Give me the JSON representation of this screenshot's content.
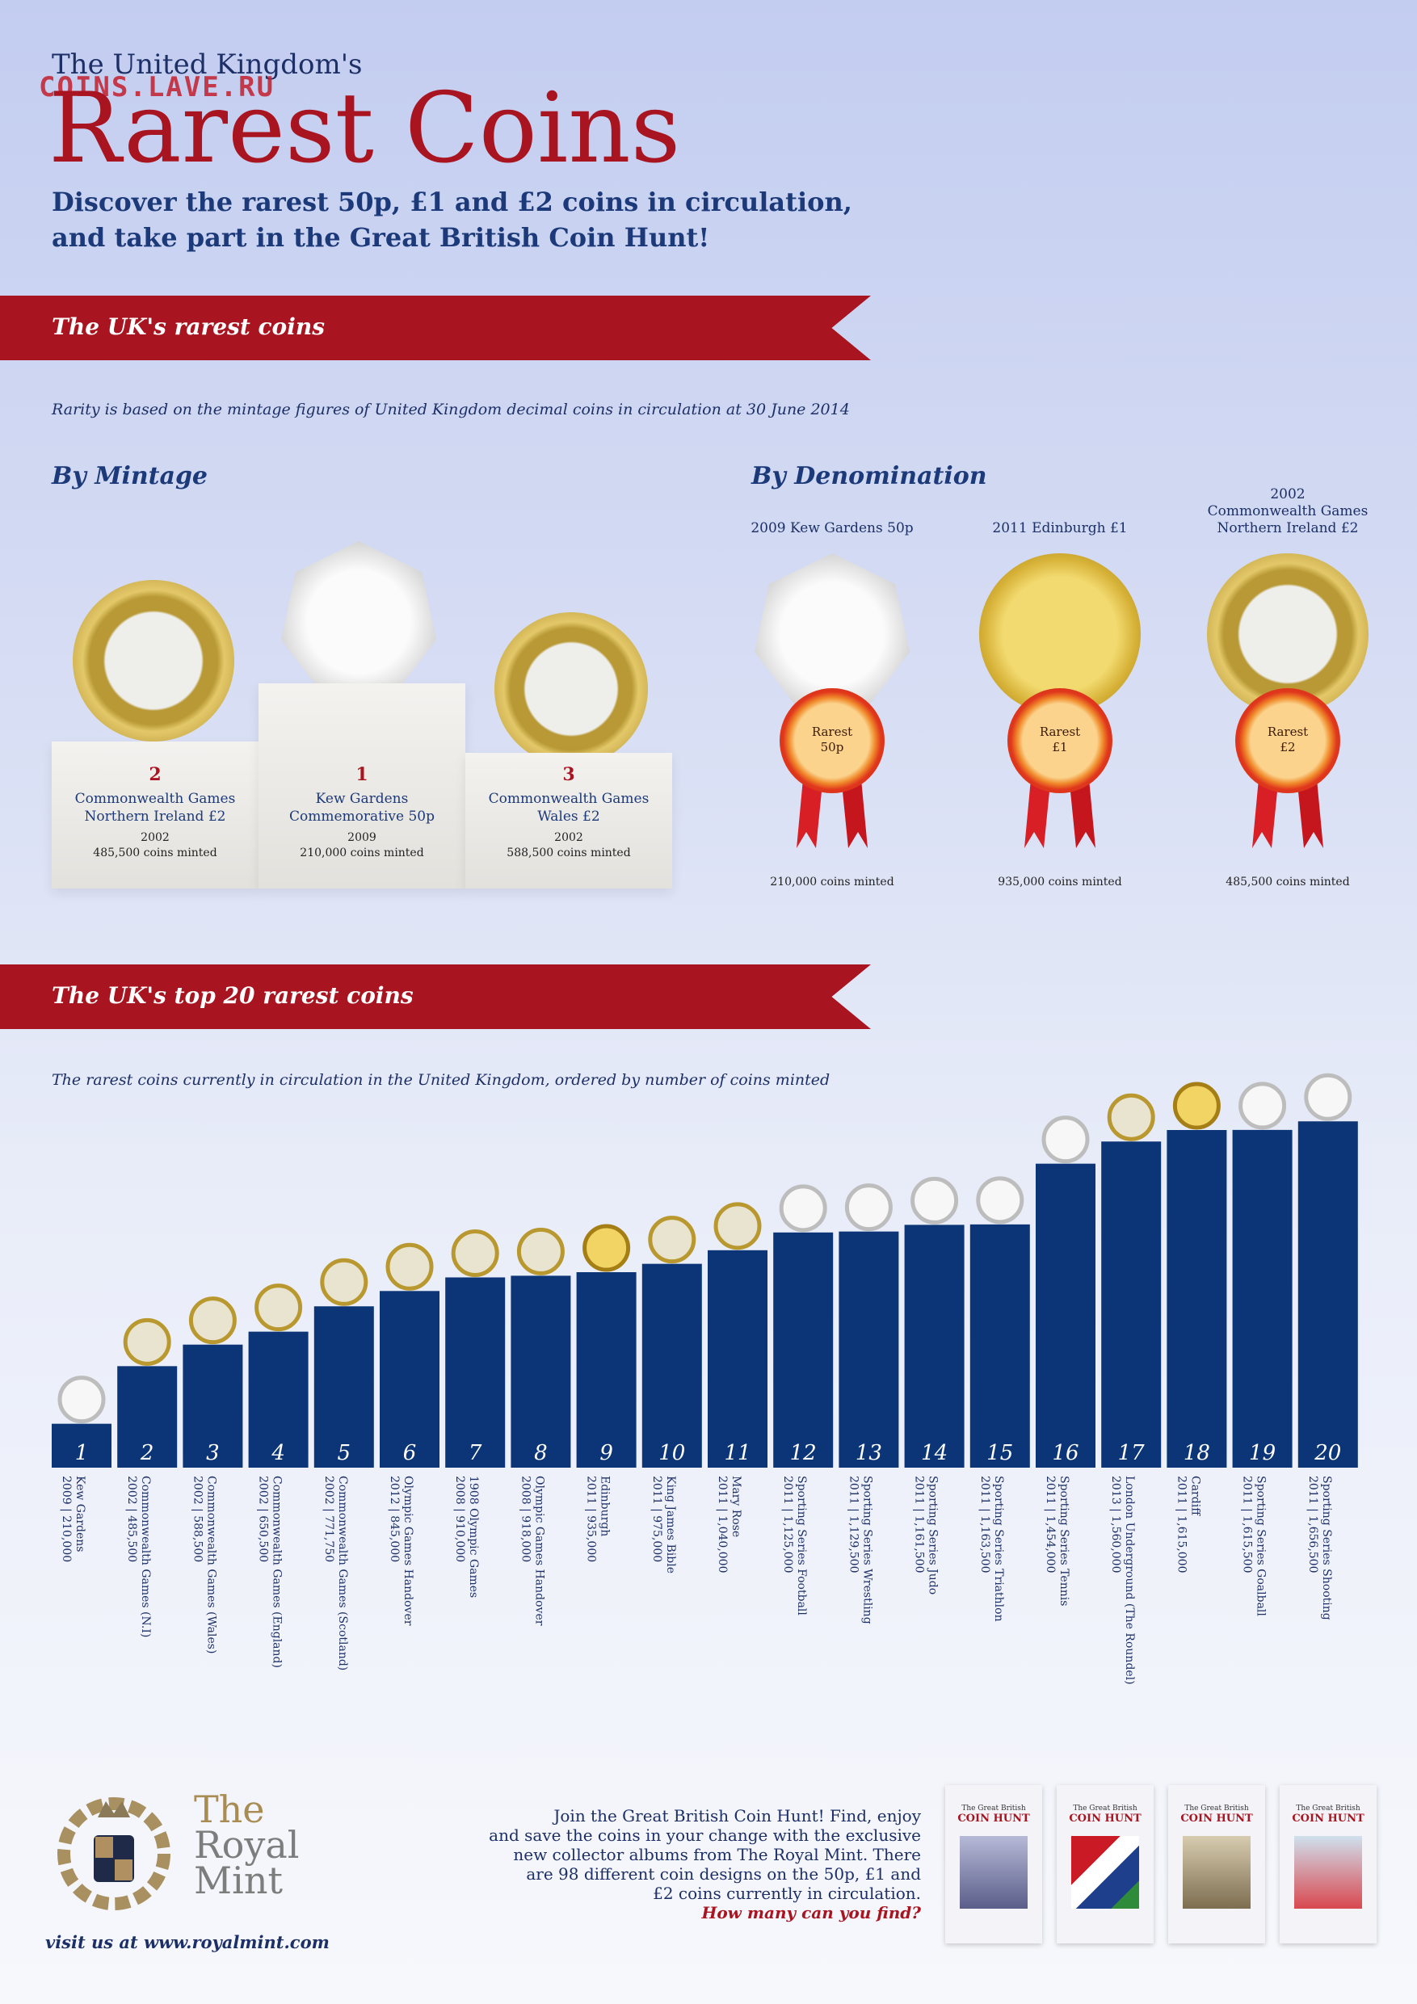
{
  "watermark": "COINS.LAVE.RU",
  "header": {
    "kicker": "The United Kingdom's",
    "title": "Rarest Coins",
    "subtitle_line1": "Discover the rarest 50p, £1 and £2 coins in circulation,",
    "subtitle_line2": "and take part in the Great British Coin Hunt!"
  },
  "ribbon1": {
    "label": "The UK's rarest coins"
  },
  "rarity_note": "Rarity is based on the mintage figures of United Kingdom decimal coins in circulation at 30 June 2014",
  "by_mintage": {
    "heading": "By Mintage",
    "podium": [
      {
        "rank": "2",
        "name_line1": "Commonwealth Games",
        "name_line2": "Northern Ireland £2",
        "year": "2002",
        "minted": "485,500 coins minted"
      },
      {
        "rank": "1",
        "name_line1": "Kew Gardens",
        "name_line2": "Commemorative 50p",
        "year": "2009",
        "minted": "210,000 coins minted"
      },
      {
        "rank": "3",
        "name_line1": "Commonwealth Games",
        "name_line2": "Wales £2",
        "year": "2002",
        "minted": "588,500 coins minted"
      }
    ]
  },
  "by_denomination": {
    "heading": "By Denomination",
    "items": [
      {
        "name_line1": "",
        "name_line2": "2009 Kew Gardens 50p",
        "badge_line1": "Rarest",
        "badge_line2": "50p",
        "minted": "210,000 coins minted"
      },
      {
        "name_line1": "",
        "name_line2": "2011 Edinburgh £1",
        "badge_line1": "Rarest",
        "badge_line2": "£1",
        "minted": "935,000 coins minted"
      },
      {
        "name_line1": "2002",
        "name_line2": "Commonwealth Games",
        "name_line3": "Northern Ireland £2",
        "badge_line1": "Rarest",
        "badge_line2": "£2",
        "minted": "485,500 coins minted"
      }
    ]
  },
  "ribbon2": {
    "label": "The UK's top 20 rarest coins"
  },
  "chart_note": "The rarest coins currently in circulation in the United Kingdom, ordered by number of coins minted",
  "chart_data": {
    "type": "bar",
    "bar_color": "#0b3576",
    "categories": [
      "Kew Gardens",
      "Commonwealth Games (N.I)",
      "Commonwealth Games (Wales)",
      "Commonwealth Games (England)",
      "Commonwealth Games (Scotland)",
      "Olympic Games Handover",
      "1908 Olympic Games",
      "Olympic Games Handover",
      "Edinburgh",
      "King James Bible",
      "Mary Rose",
      "Sporting Series Football",
      "Sporting Series Wrestling",
      "Sporting Series Judo",
      "Sporting Series Triathlon",
      "Sporting Series Tennis",
      "London Underground (The Roundel)",
      "Cardiff",
      "Sporting Series Goalball",
      "Sporting Series Shooting"
    ],
    "ranks": [
      "1",
      "2",
      "3",
      "4",
      "5",
      "6",
      "7",
      "8",
      "9",
      "10",
      "11",
      "12",
      "13",
      "14",
      "15",
      "16",
      "17",
      "18",
      "19",
      "20"
    ],
    "years": [
      "2009",
      "2002",
      "2002",
      "2002",
      "2002",
      "2012",
      "2008",
      "2008",
      "2011",
      "2011",
      "2011",
      "2011",
      "2011",
      "2011",
      "2011",
      "2011",
      "2013",
      "2011",
      "2011",
      "2011"
    ],
    "mintage_labels": [
      "210,000",
      "485,500",
      "588,500",
      "650,500",
      "771,750",
      "845,000",
      "910,000",
      "918,000",
      "935,000",
      "975,000",
      "1,040,000",
      "1,125,000",
      "1,129,500",
      "1,161,500",
      "1,163,500",
      "1,454,000",
      "1,560,000",
      "1,615,000",
      "1,615,500",
      "1,656,500"
    ],
    "values": [
      210000,
      485500,
      588500,
      650500,
      771750,
      845000,
      910000,
      918000,
      935000,
      975000,
      1040000,
      1125000,
      1129500,
      1161500,
      1163500,
      1454000,
      1560000,
      1615000,
      1615500,
      1656500
    ],
    "coin_types": [
      "silver",
      "bimetal",
      "bimetal",
      "bimetal",
      "bimetal",
      "bimetal",
      "bimetal",
      "bimetal",
      "gold",
      "bimetal",
      "bimetal",
      "silver",
      "silver",
      "silver",
      "silver",
      "silver",
      "bimetal",
      "gold",
      "silver",
      "silver"
    ],
    "ylim": [
      0,
      1700000
    ]
  },
  "footer": {
    "brand_line1": "The",
    "brand_line2": "Royal",
    "brand_line3": "Mint",
    "url": "visit us at www.royalmint.com",
    "blurb_lines": [
      "Join the Great British Coin Hunt! Find, enjoy",
      "and save the coins in your change with the exclusive",
      "new collector albums from The Royal Mint. There",
      "are 98 different coin designs on the 50p, £1 and",
      "£2 coins currently in circulation."
    ],
    "cta": "How many can you find?",
    "album_title": "COIN HUNT",
    "album_brand": "The Great British",
    "albums": [
      "album-1",
      "album-2",
      "album-3",
      "album-4"
    ]
  },
  "colors": {
    "brand_red": "#a8141f",
    "navy": "#1c3a7a",
    "bar": "#0b3576"
  }
}
